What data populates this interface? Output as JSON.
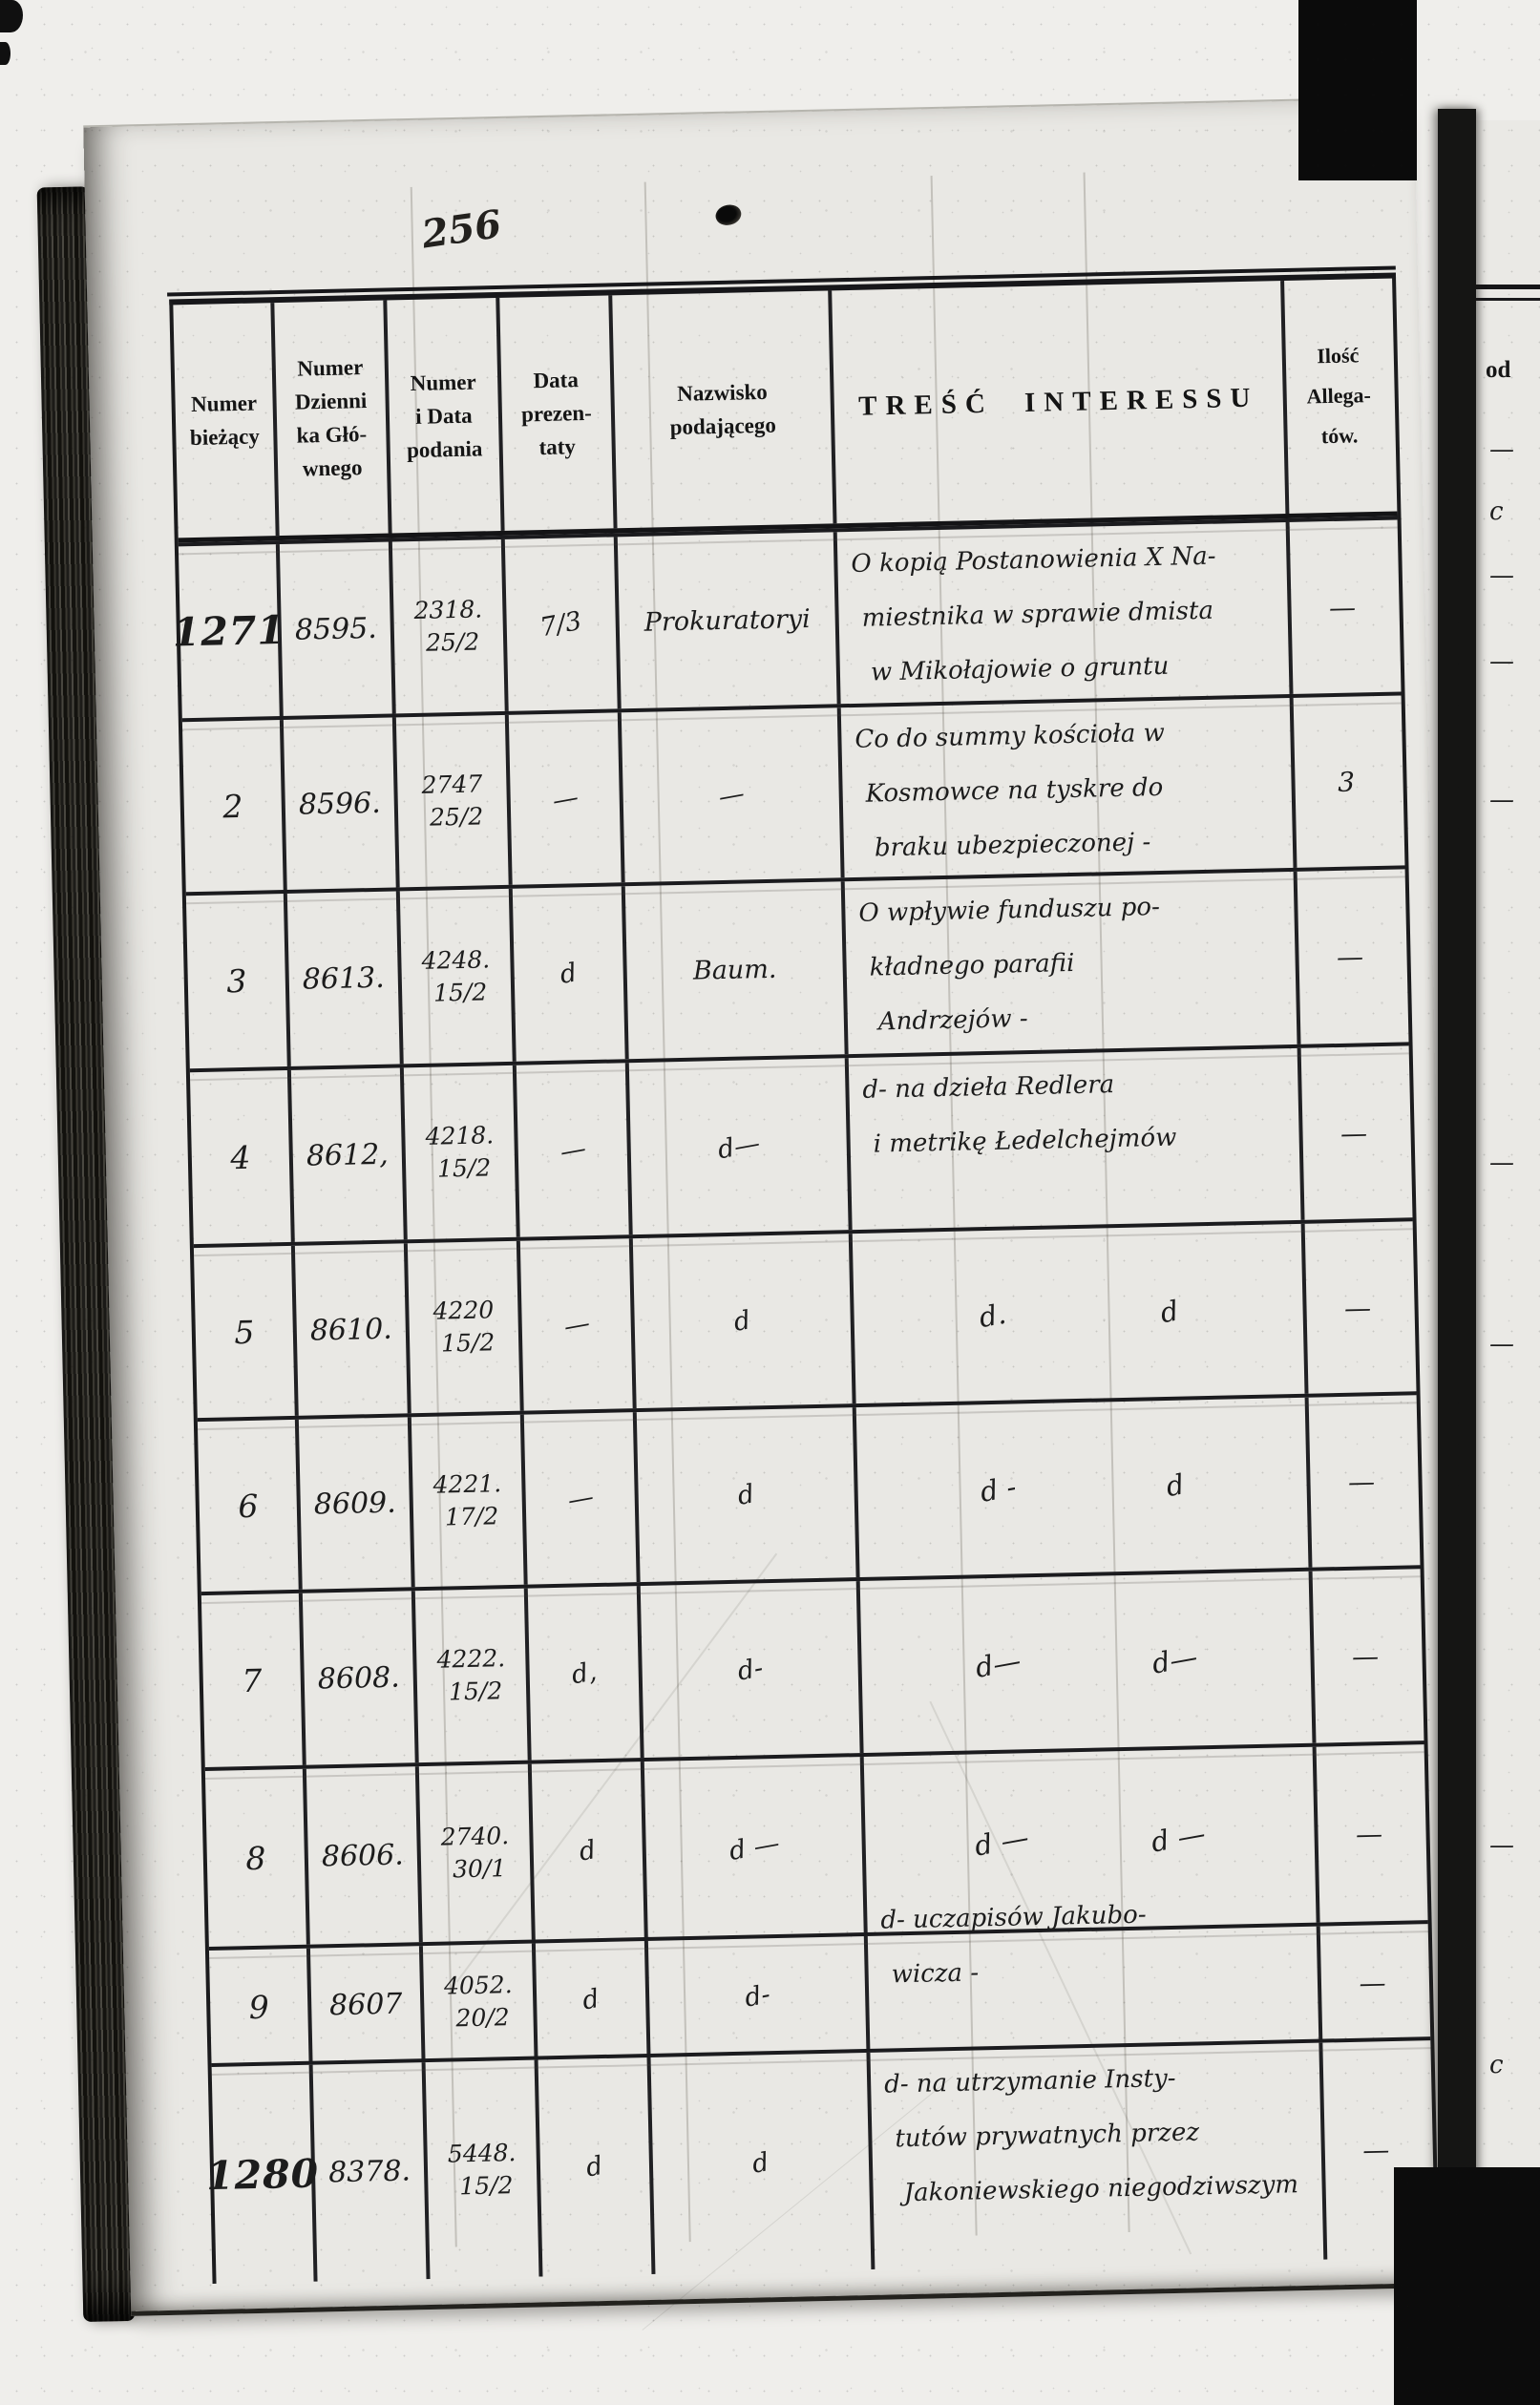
{
  "annotations": {
    "page_number": "256"
  },
  "colors": {
    "ink": "#1c1c1c",
    "paper": "#e9e8e4",
    "rule": "#1b1b1e"
  },
  "table": {
    "headers": {
      "col1": [
        "Numer",
        "bieżący"
      ],
      "col2": [
        "Numer",
        "Dzienni",
        "ka Głó-",
        "wnego"
      ],
      "col3": [
        "Numer",
        "i Data",
        "podania"
      ],
      "col4": [
        "Data",
        "prezen-",
        "taty"
      ],
      "col5": [
        "Nazwisko",
        "podającego"
      ],
      "col6": "TREŚĆ INTERESSU",
      "col7": [
        "Ilość",
        "Allega-",
        "tów."
      ]
    },
    "rows": [
      {
        "numer": "1271",
        "dziennik": "8595.",
        "podanie_nr": "2318.",
        "podanie_data": "25/2",
        "prezentata": "7/3",
        "nazwisko": "Prokuratoryi",
        "tresc": [
          "O kopią Postanowienia X Na-",
          "miestnika w sprawie dmista",
          "w Mikołajowie o gruntu"
        ],
        "ilosc": "—"
      },
      {
        "numer": "2",
        "dziennik": "8596.",
        "podanie_nr": "2747",
        "podanie_data": "25/2",
        "prezentata": "—",
        "nazwisko": "—",
        "tresc": [
          "Co do summy kościoła w",
          "Kosmowce na tyskre do",
          "braku ubezpieczonej -"
        ],
        "ilosc": "3"
      },
      {
        "numer": "3",
        "dziennik": "8613.",
        "podanie_nr": "4248.",
        "podanie_data": "15/2",
        "prezentata": "d",
        "nazwisko": "Baum.",
        "tresc": [
          "O wpływie funduszu po-",
          "kładnego parafii",
          "Andrzejów -"
        ],
        "ilosc": "—"
      },
      {
        "numer": "4",
        "dziennik": "8612,",
        "podanie_nr": "4218.",
        "podanie_data": "15/2",
        "prezentata": "—",
        "nazwisko": "d—",
        "tresc": [
          "d- na dzieła Redlera",
          "i metrikę Łedelchejmów"
        ],
        "ilosc": "—"
      },
      {
        "numer": "5",
        "dziennik": "8610.",
        "podanie_nr": "4220",
        "podanie_data": "15/2",
        "prezentata": "—",
        "nazwisko": "d",
        "tresc_ditto": [
          "d.",
          "d"
        ],
        "ilosc": "—"
      },
      {
        "numer": "6",
        "dziennik": "8609.",
        "podanie_nr": "4221.",
        "podanie_data": "17/2",
        "prezentata": "—",
        "nazwisko": "d",
        "tresc_ditto": [
          "d -",
          "d"
        ],
        "ilosc": "—"
      },
      {
        "numer": "7",
        "dziennik": "8608.",
        "podanie_nr": "4222.",
        "podanie_data": "15/2",
        "prezentata": "d,",
        "nazwisko": "d-",
        "tresc_ditto": [
          "d—",
          "d—"
        ],
        "ilosc": "—"
      },
      {
        "numer": "8",
        "dziennik": "8606.",
        "podanie_nr": "2740.",
        "podanie_data": "30/1",
        "prezentata": "d",
        "nazwisko": "d —",
        "tresc_ditto": [
          "d —",
          "d —"
        ],
        "ilosc": "—"
      },
      {
        "numer": "9",
        "dziennik": "8607",
        "podanie_nr": "4052.",
        "podanie_data": "20/2",
        "prezentata": "d",
        "nazwisko": "d-",
        "tresc": [
          "d- uczapisów Jakubo-",
          "wicza -"
        ],
        "ilosc": "—"
      },
      {
        "numer": "1280",
        "dziennik": "8378.",
        "podanie_nr": "5448.",
        "podanie_data": "15/2",
        "prezentata": "d",
        "nazwisko": "d",
        "tresc": [
          "d- na utrzymanie Insty-",
          "tutów prywatnych przez",
          "Jakoniewskiego niegodziwszym"
        ],
        "ilosc": "—"
      }
    ]
  },
  "adjacent_page": {
    "header_fragment": "od",
    "marks": [
      "—",
      "c",
      "—",
      "—",
      "—",
      "—",
      "—",
      "—",
      "c"
    ]
  }
}
